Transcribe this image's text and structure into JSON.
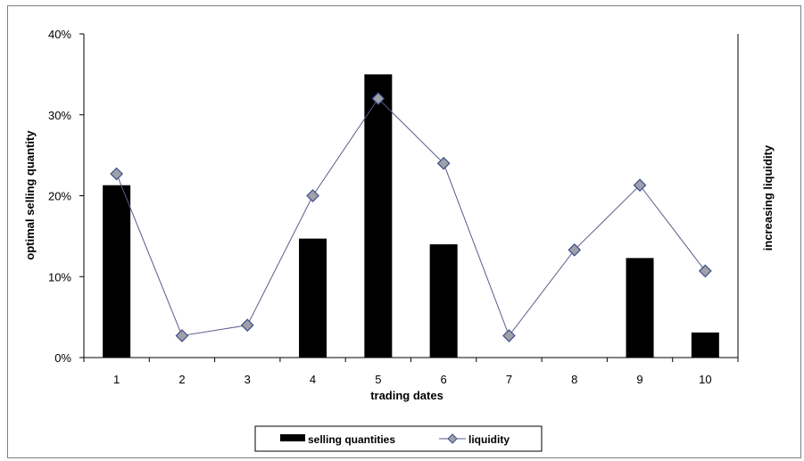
{
  "chart_data": {
    "type": "bar",
    "categories": [
      "1",
      "2",
      "3",
      "4",
      "5",
      "6",
      "7",
      "8",
      "9",
      "10"
    ],
    "series": [
      {
        "name": "selling quantities",
        "type": "bar",
        "values": [
          21.3,
          0,
          0,
          14.7,
          35.0,
          14.0,
          0,
          0,
          12.3,
          3.1
        ],
        "color": "#000000"
      },
      {
        "name": "liquidity",
        "type": "line",
        "values": [
          22.7,
          2.7,
          4.0,
          20.0,
          32.0,
          24.0,
          2.7,
          13.3,
          21.3,
          10.7
        ],
        "line_color": "#5a5a8a",
        "marker": "diamond",
        "marker_fill": "#a0a0a8",
        "marker_stroke": "#3a4c8c"
      }
    ],
    "xlabel": "trading dates",
    "ylabel": "optimal selling quantity",
    "y2label": "increasing liquidity",
    "ylim": [
      0,
      40
    ],
    "yticks": [
      "0%",
      "10%",
      "20%",
      "30%",
      "40%"
    ],
    "ytick_values": [
      0,
      10,
      20,
      30,
      40
    ],
    "grid": false,
    "legend_position": "bottom"
  }
}
